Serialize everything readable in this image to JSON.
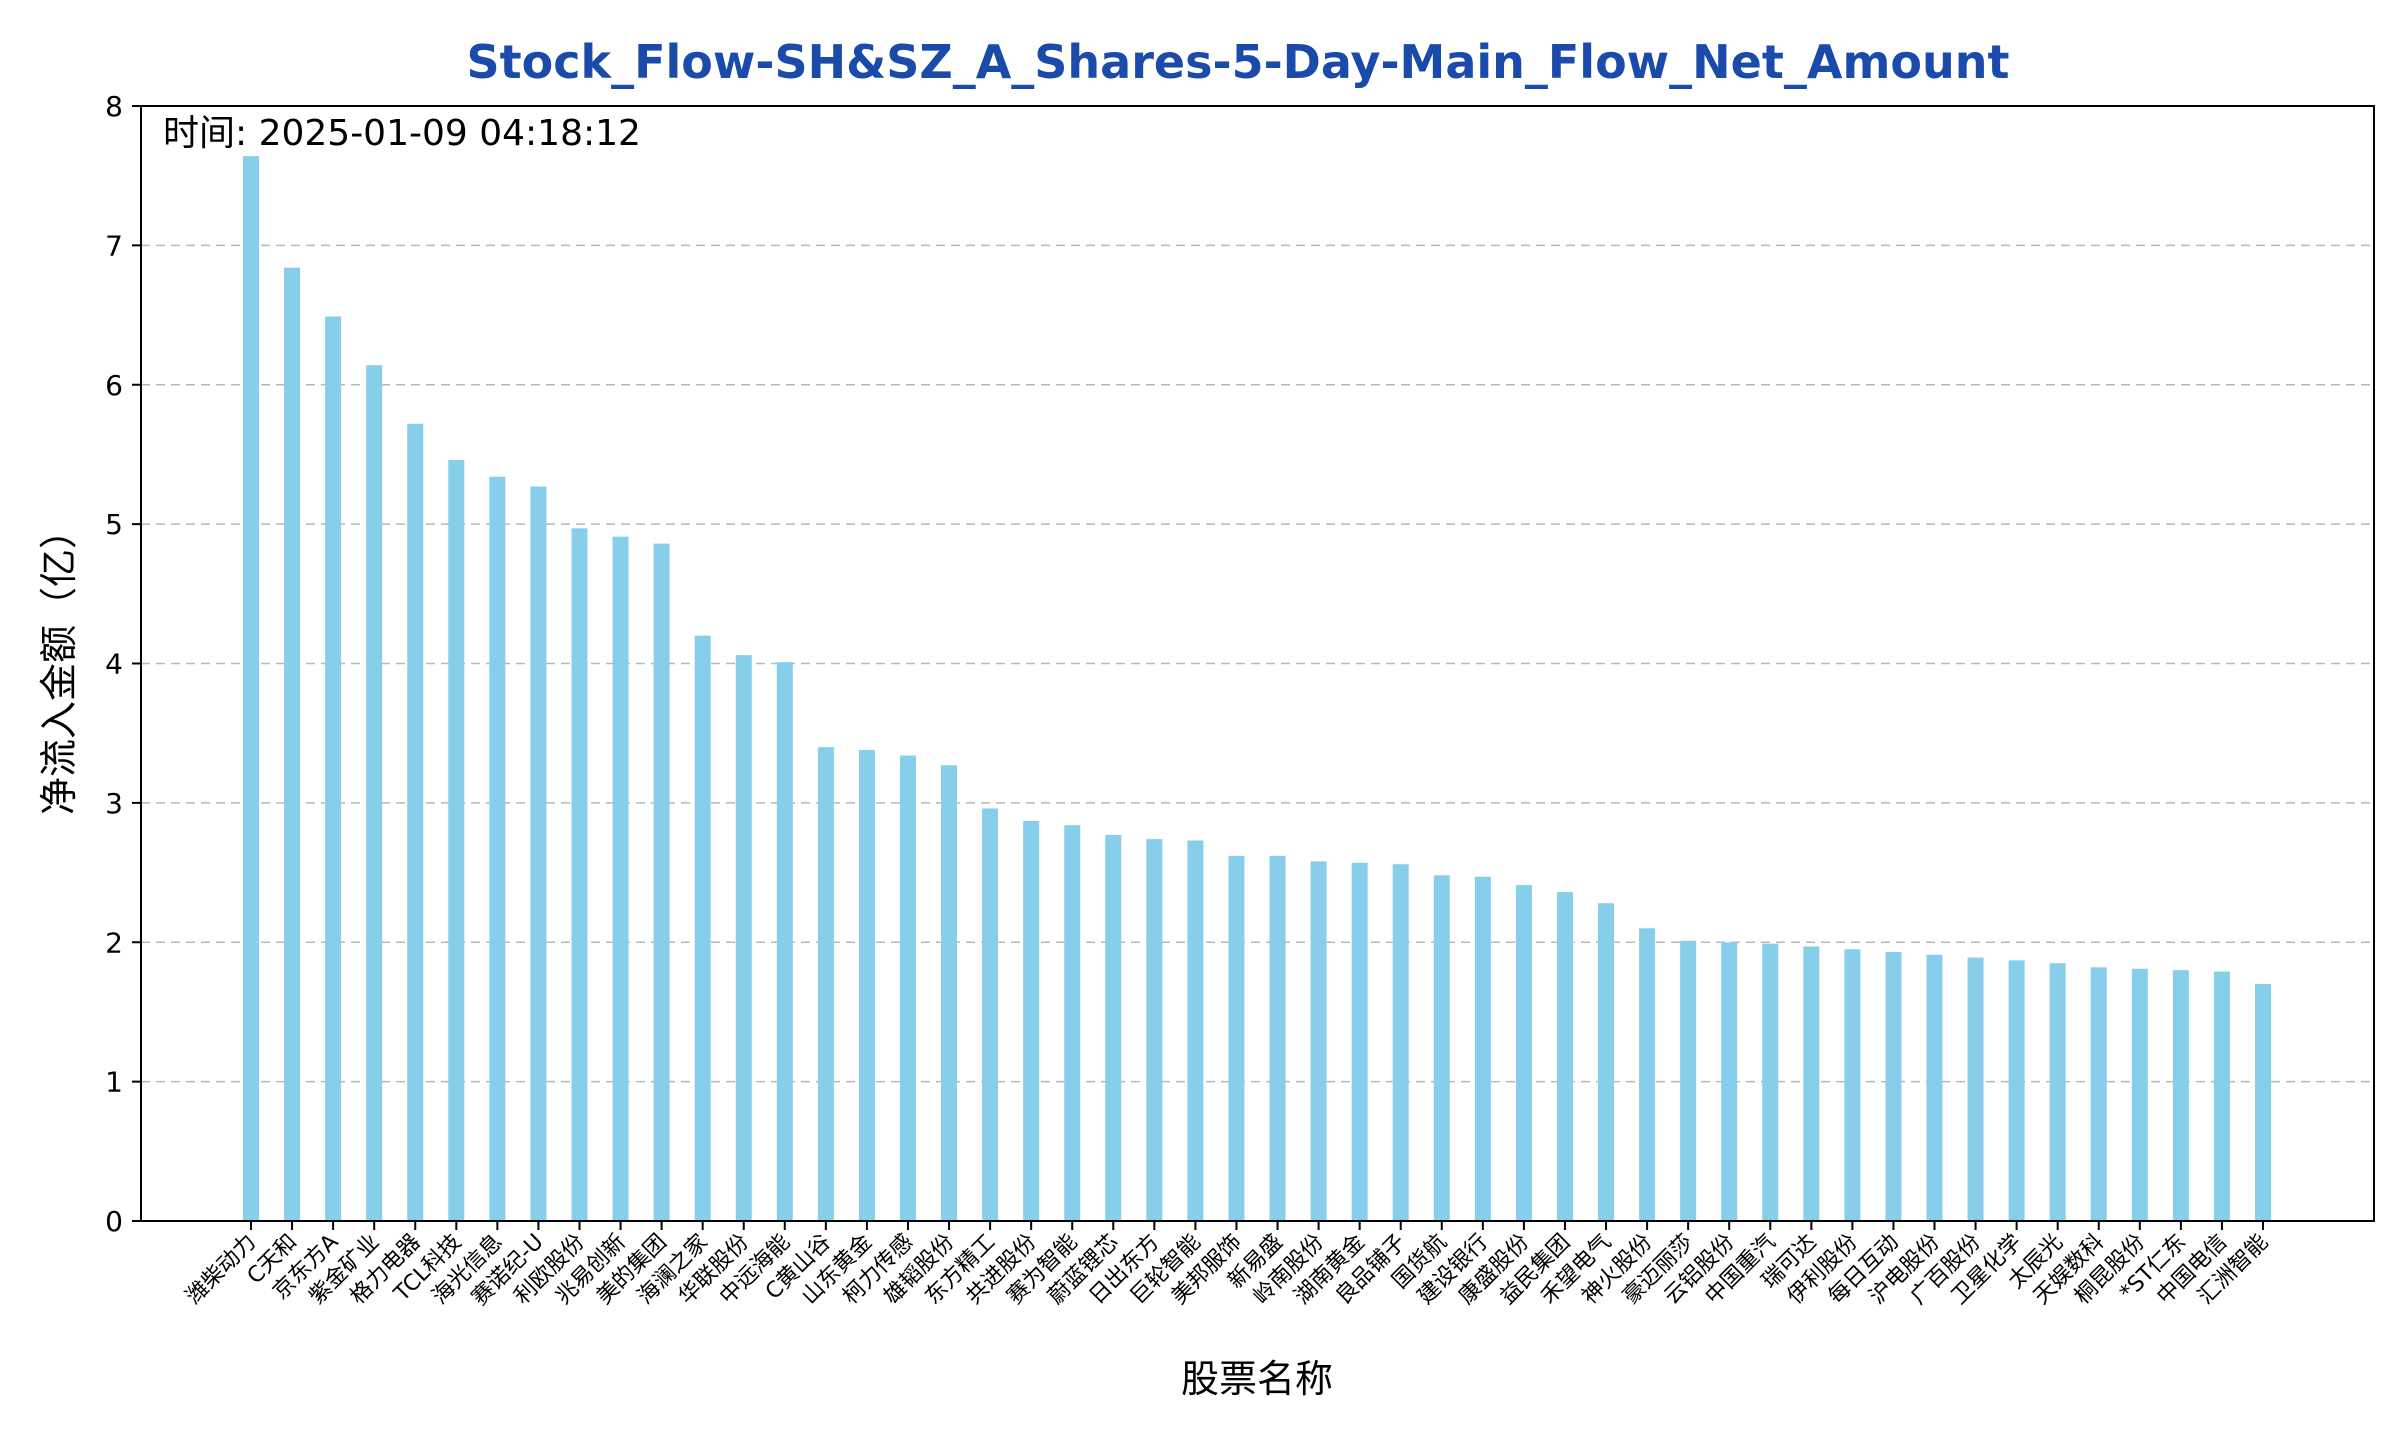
{
  "chart_data": {
    "type": "bar",
    "title": "Stock_Flow-SH&SZ_A_Shares-5-Day-Main_Flow_Net_Amount",
    "timestamp": "时间: 2025-01-09 04:18:12",
    "xlabel": "股票名称",
    "ylabel": "净流入金额（亿）",
    "ylim": [
      0,
      8
    ],
    "yticks": [
      "0",
      "1",
      "2",
      "3",
      "4",
      "5",
      "6",
      "7",
      "8"
    ],
    "grid": "y-dashed",
    "bar_color": "#87ceeb",
    "title_color": "#1a4aaa",
    "categories": [
      "潍柴动力",
      "C天和",
      "京东方A",
      "紫金矿业",
      "格力电器",
      "TCL科技",
      "海光信息",
      "赛诺纪-U",
      "利欧股份",
      "兆易创新",
      "美的集团",
      "海澜之家",
      "华联股份",
      "中远海能",
      "C黄山谷",
      "山东黄金",
      "柯力传感",
      "雄韬股份",
      "东方精工",
      "共进股份",
      "赛为智能",
      "蔚蓝锂芯",
      "日出东方",
      "巨轮智能",
      "美邦服饰",
      "新易盛",
      "岭南股份",
      "湖南黄金",
      "良品铺子",
      "国货航",
      "建设银行",
      "康盛股份",
      "益民集团",
      "禾望电气",
      "神火股份",
      "豪迈丽莎",
      "云铝股份",
      "中国重汽",
      "瑞可达",
      "伊利股份",
      "每日互动",
      "沪电股份",
      "广百股份",
      "卫星化学",
      "太辰光",
      "天娱数科",
      "桐昆股份",
      "*ST仁东",
      "中国电信",
      "汇洲智能"
    ],
    "values": [
      7.64,
      6.84,
      6.49,
      6.14,
      5.72,
      5.46,
      5.34,
      5.27,
      4.97,
      4.91,
      4.86,
      4.2,
      4.06,
      4.01,
      3.4,
      3.38,
      3.34,
      3.27,
      2.96,
      2.87,
      2.84,
      2.77,
      2.74,
      2.73,
      2.62,
      2.62,
      2.58,
      2.57,
      2.56,
      2.48,
      2.47,
      2.41,
      2.36,
      2.28,
      2.1,
      2.01,
      2.0,
      1.99,
      1.97,
      1.95,
      1.93,
      1.91,
      1.89,
      1.87,
      1.85,
      1.82,
      1.81,
      1.8,
      1.79,
      1.7
    ]
  }
}
